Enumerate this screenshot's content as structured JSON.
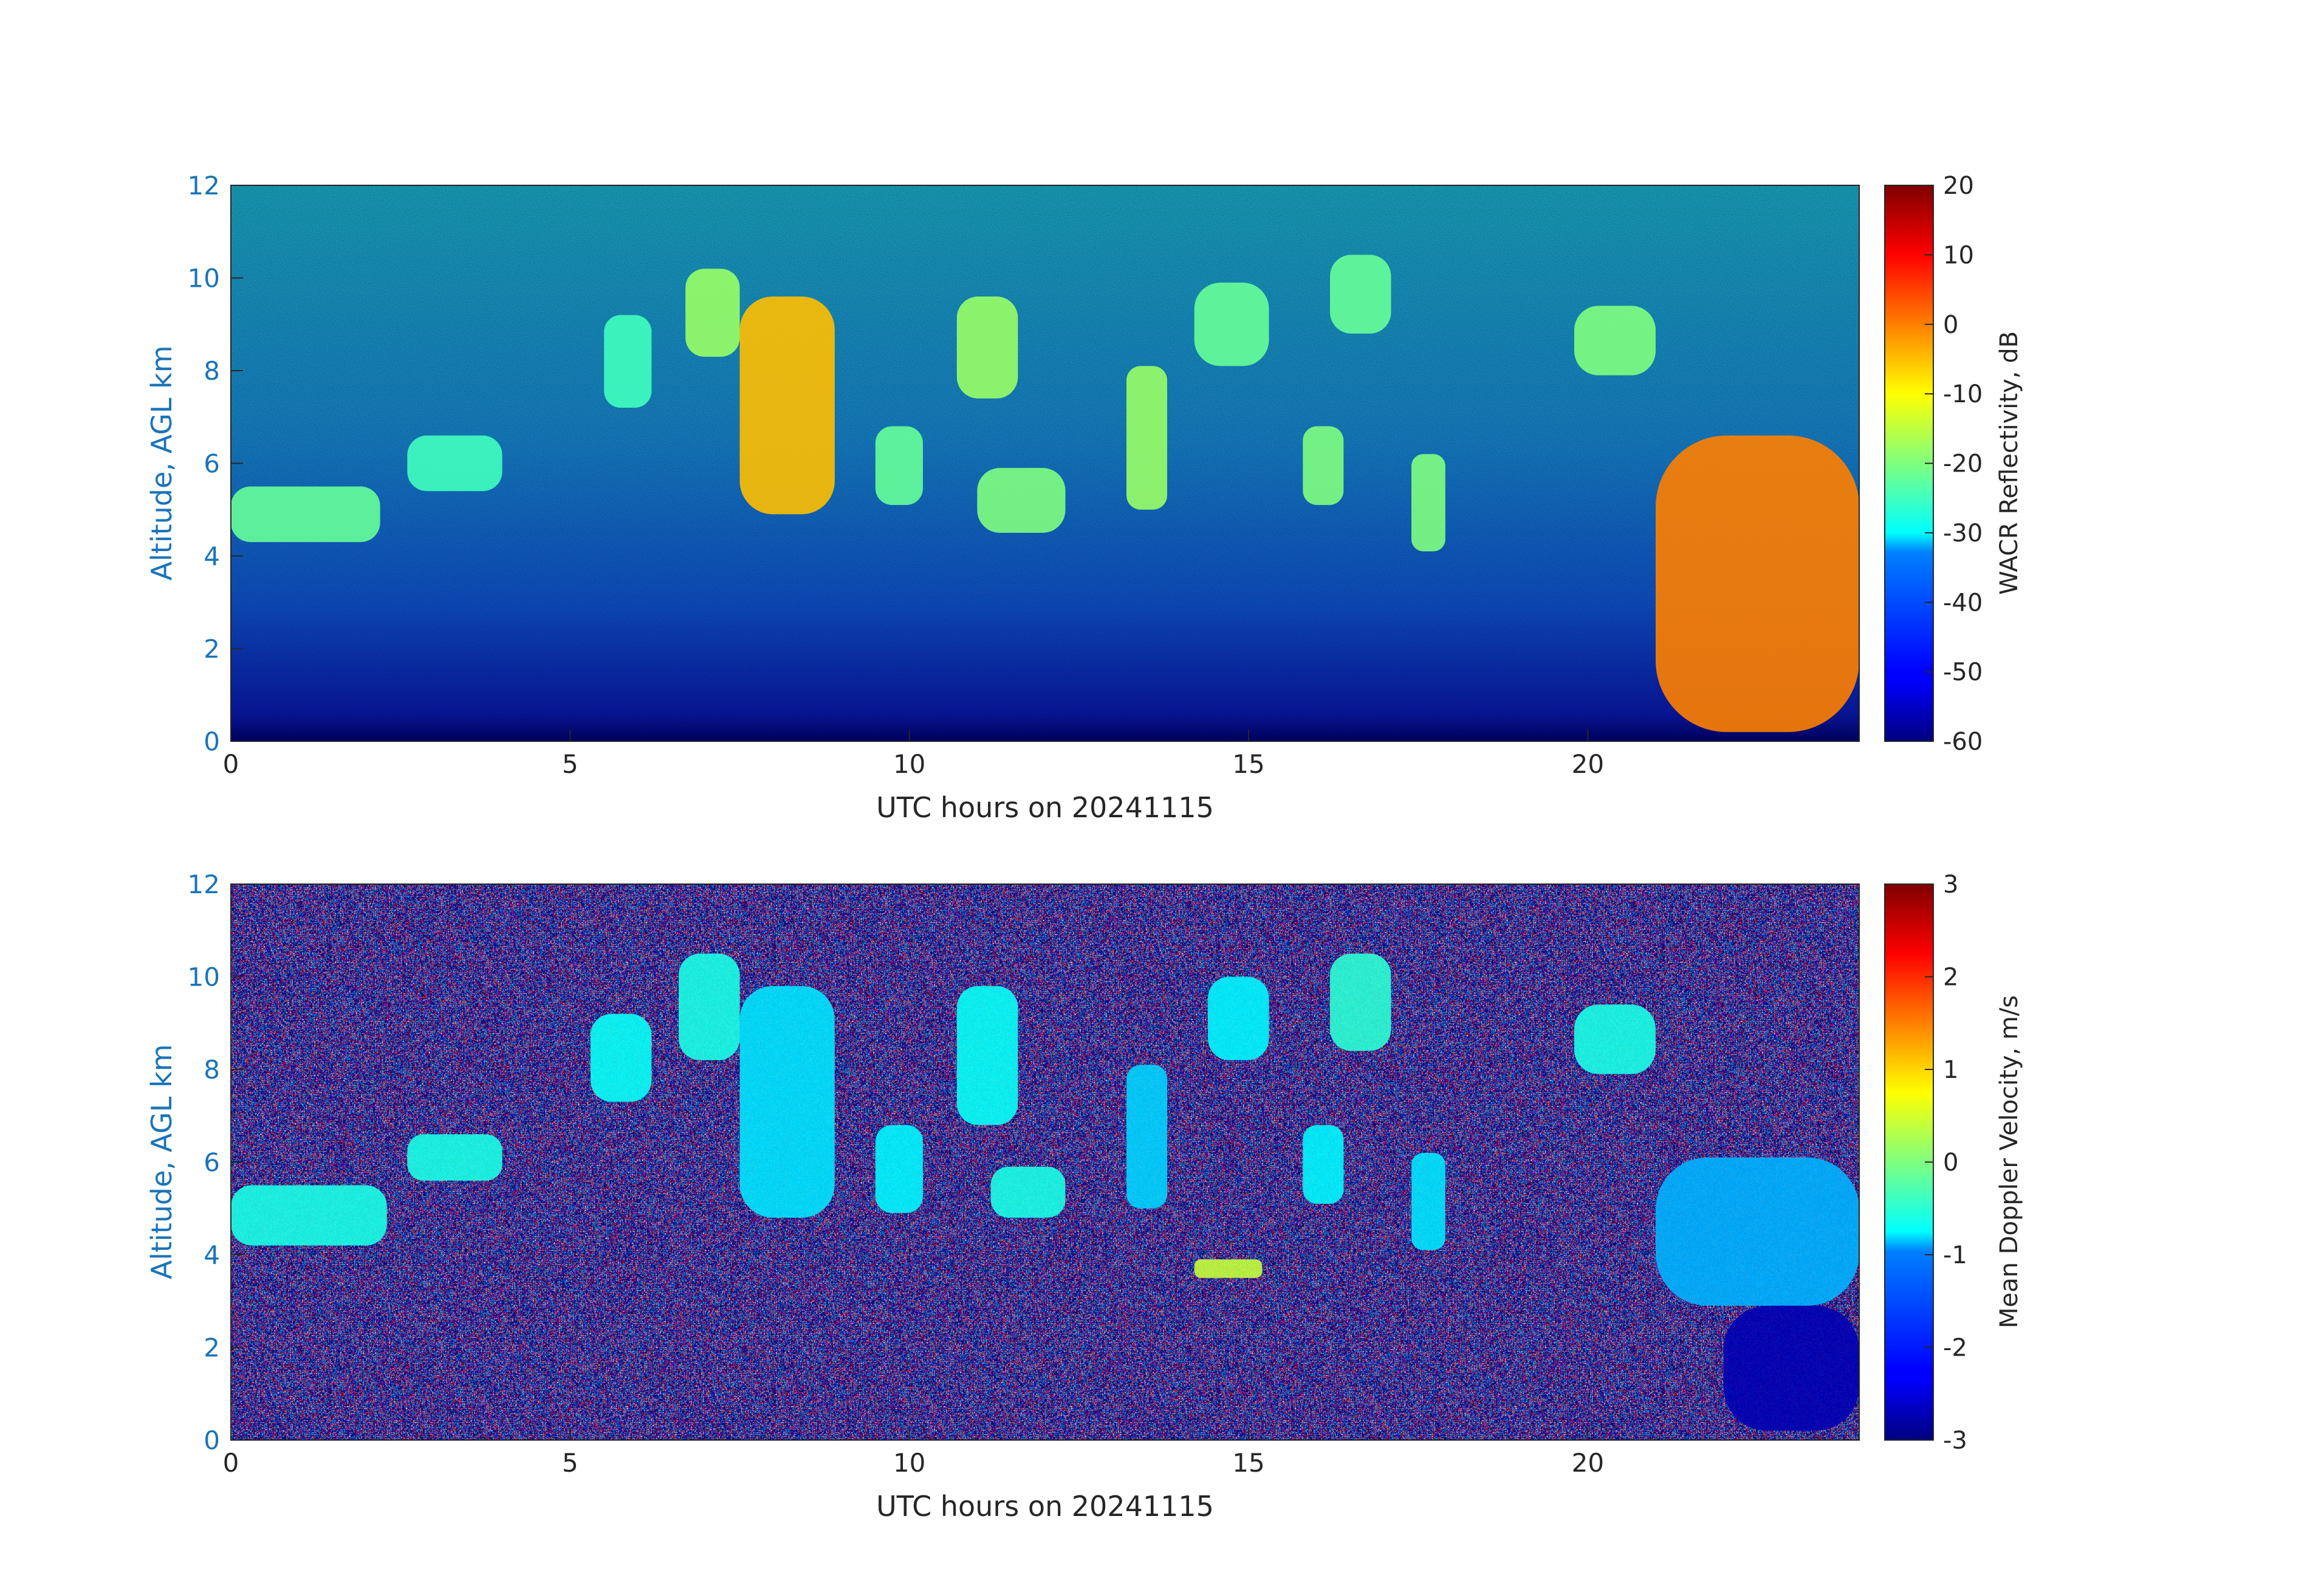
{
  "chart_data": [
    {
      "type": "heatmap",
      "xlabel": "UTC hours on 20241115",
      "ylabel": "Altitude, AGL km",
      "xlim": [
        0,
        24
      ],
      "ylim": [
        0,
        12
      ],
      "xticks": [
        0,
        5,
        10,
        15,
        20
      ],
      "yticks": [
        0,
        2,
        4,
        6,
        8,
        10,
        12
      ],
      "colorbar": {
        "label": "WACR Reflectivity, dB",
        "range": [
          -60,
          20
        ],
        "ticks": [
          20,
          10,
          0,
          -10,
          -20,
          -30,
          -40,
          -50,
          -60
        ],
        "colormap": "jet"
      },
      "features": [
        {
          "x": [
            0,
            2.2
          ],
          "y": [
            4.3,
            5.5
          ],
          "value": -22
        },
        {
          "x": [
            2.6,
            4.0
          ],
          "y": [
            5.4,
            6.6
          ],
          "value": -25
        },
        {
          "x": [
            5.5,
            6.2
          ],
          "y": [
            7.2,
            9.2
          ],
          "value": -25
        },
        {
          "x": [
            6.7,
            7.5
          ],
          "y": [
            8.3,
            10.2
          ],
          "value": -18
        },
        {
          "x": [
            7.5,
            8.9
          ],
          "y": [
            4.9,
            9.6
          ],
          "value": -5
        },
        {
          "x": [
            9.5,
            10.2
          ],
          "y": [
            5.1,
            6.8
          ],
          "value": -22
        },
        {
          "x": [
            10.7,
            11.6
          ],
          "y": [
            7.4,
            9.6
          ],
          "value": -18
        },
        {
          "x": [
            11.0,
            12.3
          ],
          "y": [
            4.5,
            5.9
          ],
          "value": -20
        },
        {
          "x": [
            13.2,
            13.8
          ],
          "y": [
            5.0,
            8.1
          ],
          "value": -18
        },
        {
          "x": [
            14.2,
            15.3
          ],
          "y": [
            8.1,
            9.9
          ],
          "value": -22
        },
        {
          "x": [
            15.8,
            16.4
          ],
          "y": [
            5.1,
            6.8
          ],
          "value": -20
        },
        {
          "x": [
            16.2,
            17.1
          ],
          "y": [
            8.8,
            10.5
          ],
          "value": -22
        },
        {
          "x": [
            17.4,
            17.9
          ],
          "y": [
            4.1,
            6.2
          ],
          "value": -20
        },
        {
          "x": [
            19.8,
            21.0
          ],
          "y": [
            7.9,
            9.4
          ],
          "value": -20
        },
        {
          "x": [
            21.0,
            24.0
          ],
          "y": [
            0.2,
            6.6
          ],
          "value": 0
        }
      ]
    },
    {
      "type": "heatmap",
      "xlabel": "UTC hours on 20241115",
      "ylabel": "Altitude, AGL km",
      "xlim": [
        0,
        24
      ],
      "ylim": [
        0,
        12
      ],
      "xticks": [
        0,
        5,
        10,
        15,
        20
      ],
      "yticks": [
        0,
        2,
        4,
        6,
        8,
        10,
        12
      ],
      "colorbar": {
        "label": "Mean Doppler Velocity, m/s",
        "range": [
          -3,
          3
        ],
        "ticks": [
          3,
          2,
          1,
          0,
          -1,
          -2,
          -3
        ],
        "colormap": "jet"
      },
      "features": [
        {
          "x": [
            0,
            2.3
          ],
          "y": [
            4.2,
            5.5
          ],
          "value": -0.6
        },
        {
          "x": [
            2.6,
            4.0
          ],
          "y": [
            5.6,
            6.6
          ],
          "value": -0.6
        },
        {
          "x": [
            5.3,
            6.2
          ],
          "y": [
            7.3,
            9.2
          ],
          "value": -0.7
        },
        {
          "x": [
            6.6,
            7.5
          ],
          "y": [
            8.2,
            10.5
          ],
          "value": -0.6
        },
        {
          "x": [
            7.5,
            8.9
          ],
          "y": [
            4.8,
            9.8
          ],
          "value": -0.9
        },
        {
          "x": [
            9.5,
            10.2
          ],
          "y": [
            4.9,
            6.8
          ],
          "value": -0.8
        },
        {
          "x": [
            10.7,
            11.6
          ],
          "y": [
            6.8,
            9.8
          ],
          "value": -0.7
        },
        {
          "x": [
            11.2,
            12.3
          ],
          "y": [
            4.8,
            5.9
          ],
          "value": -0.6
        },
        {
          "x": [
            13.2,
            13.8
          ],
          "y": [
            5.0,
            8.1
          ],
          "value": -1.0
        },
        {
          "x": [
            14.4,
            15.3
          ],
          "y": [
            8.2,
            10.0
          ],
          "value": -0.8
        },
        {
          "x": [
            15.8,
            16.4
          ],
          "y": [
            5.1,
            6.8
          ],
          "value": -0.8
        },
        {
          "x": [
            16.2,
            17.1
          ],
          "y": [
            8.4,
            10.5
          ],
          "value": -0.5
        },
        {
          "x": [
            17.4,
            17.9
          ],
          "y": [
            4.1,
            6.2
          ],
          "value": -0.9
        },
        {
          "x": [
            19.8,
            21.0
          ],
          "y": [
            7.9,
            9.4
          ],
          "value": -0.6
        },
        {
          "x": [
            14.2,
            15.2
          ],
          "y": [
            3.5,
            3.9
          ],
          "value": 0.4
        },
        {
          "x": [
            21.0,
            24.0
          ],
          "y": [
            2.9,
            6.1
          ],
          "value": -1.2
        },
        {
          "x": [
            22.0,
            24.0
          ],
          "y": [
            0.2,
            2.9
          ],
          "value": -2.7
        }
      ]
    }
  ]
}
